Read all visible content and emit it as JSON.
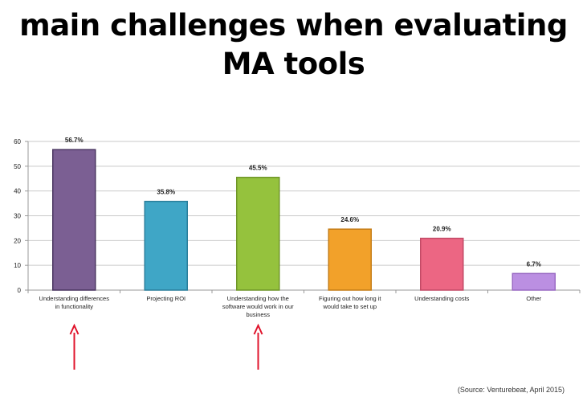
{
  "title_lines": [
    "main challenges when evaluating",
    "MA tools"
  ],
  "source": "(Source: Venturebeat, April 2015)",
  "arrow_color": "#e0142c",
  "chart_data": {
    "type": "bar",
    "categories": [
      [
        "Understanding differences",
        "in functionality"
      ],
      [
        "Projecting ROI"
      ],
      [
        "Understanding how the",
        "software would work in our",
        "business"
      ],
      [
        "Figuring out how long it",
        "would take to set up"
      ],
      [
        "Understanding costs"
      ],
      [
        "Other"
      ]
    ],
    "values": [
      56.7,
      35.8,
      45.5,
      24.6,
      20.9,
      6.7
    ],
    "data_labels": [
      "56.7%",
      "35.8%",
      "45.5%",
      "24.6%",
      "20.9%",
      "6.7%"
    ],
    "colors": [
      "#7b5f93",
      "#3fa6c6",
      "#95c23d",
      "#f2a12a",
      "#ec6683",
      "#bb8fe2"
    ],
    "edge_colors": [
      "#4a3560",
      "#2a7f9c",
      "#6f9628",
      "#c57d16",
      "#c34a66",
      "#9a6ac4"
    ],
    "ylim": [
      0,
      60
    ],
    "yticks": [
      0,
      10,
      20,
      30,
      40,
      50,
      60
    ],
    "grid": true,
    "highlighted_categories": [
      0,
      2
    ]
  }
}
